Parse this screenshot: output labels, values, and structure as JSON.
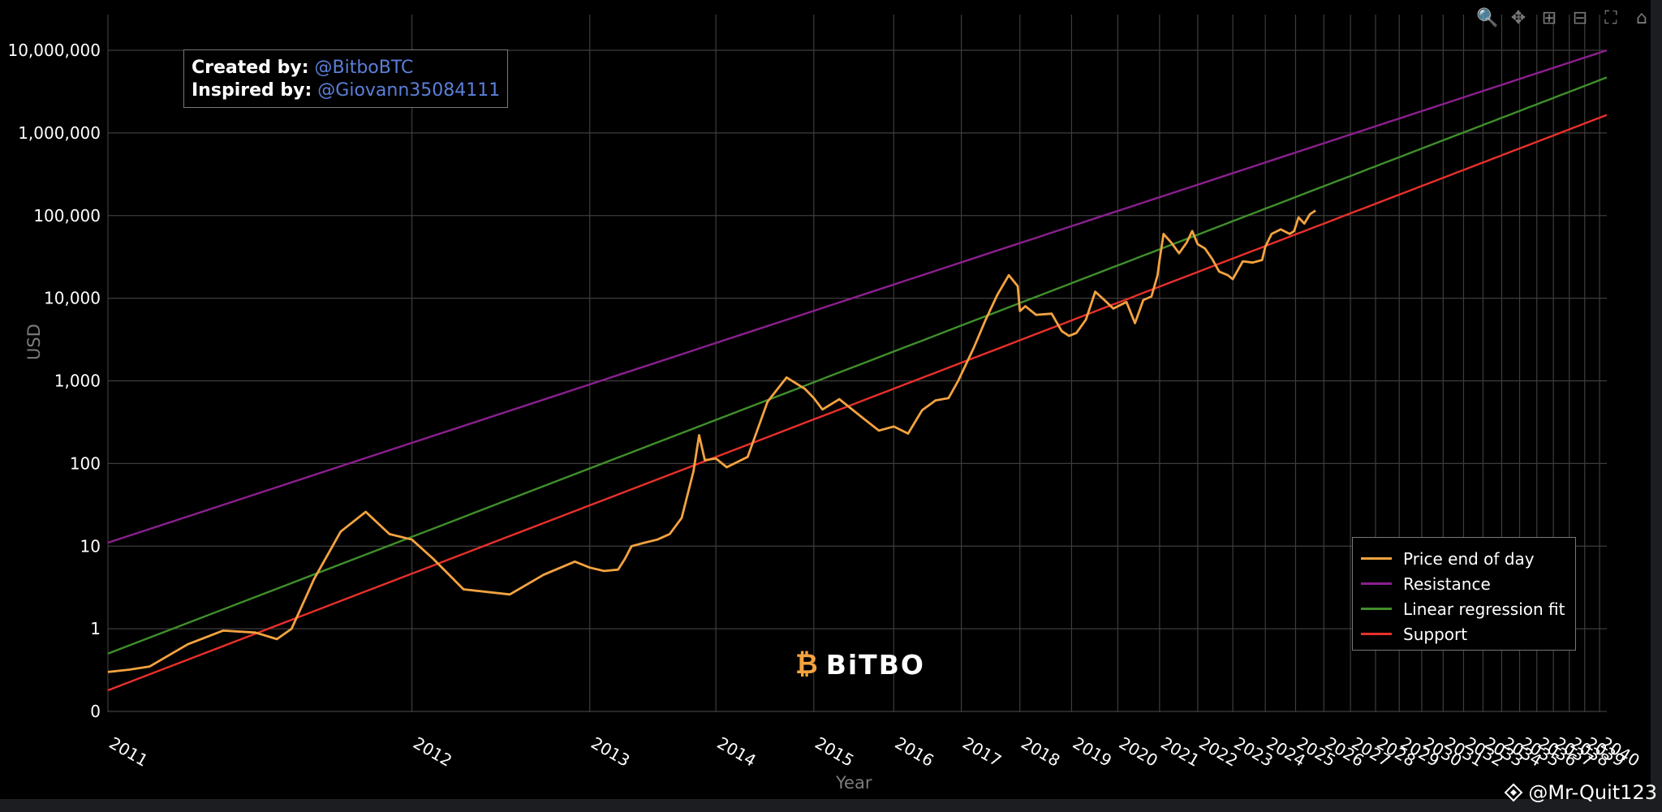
{
  "chart_data": {
    "type": "line",
    "yscale": "log",
    "xlabel": "Year",
    "ylabel": "USD",
    "ylim": [
      0.1,
      20000000
    ],
    "xlim": [
      2011.0,
      2040.5
    ],
    "y_ticks": [
      {
        "value": 0.1,
        "label": "0"
      },
      {
        "value": 1,
        "label": "1"
      },
      {
        "value": 10,
        "label": "10"
      },
      {
        "value": 100,
        "label": "100"
      },
      {
        "value": 1000,
        "label": "1,000"
      },
      {
        "value": 10000,
        "label": "10,000"
      },
      {
        "value": 100000,
        "label": "100,000"
      },
      {
        "value": 1000000,
        "label": "1,000,000"
      },
      {
        "value": 10000000,
        "label": "10,000,000"
      }
    ],
    "x_ticks": [
      "2011",
      "2012",
      "2013",
      "2014",
      "2015",
      "2016",
      "2017",
      "2018",
      "2019",
      "2020",
      "2021",
      "2022",
      "2023",
      "2024",
      "2025",
      "2026",
      "2027",
      "2028",
      "2029",
      "2030",
      "2031",
      "2032",
      "2033",
      "2034",
      "2035",
      "2036",
      "2037",
      "2038",
      "2039",
      "2040"
    ],
    "series": [
      {
        "name": "Price end of day",
        "color": "#f4a340",
        "x": [
          2011.0,
          2011.05,
          2011.1,
          2011.2,
          2011.3,
          2011.4,
          2011.47,
          2011.52,
          2011.6,
          2011.7,
          2011.8,
          2011.9,
          2012.0,
          2012.1,
          2012.25,
          2012.5,
          2012.7,
          2012.9,
          2013.0,
          2013.1,
          2013.2,
          2013.25,
          2013.3,
          2013.4,
          2013.5,
          2013.6,
          2013.7,
          2013.8,
          2013.85,
          2013.9,
          2014.0,
          2014.1,
          2014.3,
          2014.5,
          2014.7,
          2014.9,
          2015.0,
          2015.1,
          2015.3,
          2015.6,
          2015.8,
          2016.0,
          2016.2,
          2016.4,
          2016.6,
          2016.8,
          2016.95,
          2017.2,
          2017.4,
          2017.6,
          2017.8,
          2017.96,
          2018.0,
          2018.1,
          2018.3,
          2018.6,
          2018.8,
          2018.95,
          2019.1,
          2019.3,
          2019.5,
          2019.7,
          2019.9,
          2020.2,
          2020.4,
          2020.6,
          2020.8,
          2020.95,
          2021.0,
          2021.1,
          2021.3,
          2021.5,
          2021.7,
          2021.85,
          2022.0,
          2022.2,
          2022.4,
          2022.6,
          2022.85,
          2023.0,
          2023.3,
          2023.6,
          2023.9,
          2024.0,
          2024.2,
          2024.5,
          2024.8,
          2024.95,
          2025.1,
          2025.3,
          2025.5,
          2025.7
        ],
        "y": [
          0.3,
          0.32,
          0.35,
          0.65,
          0.95,
          0.9,
          0.75,
          1.0,
          4,
          15,
          26,
          14,
          12,
          7,
          3,
          2.6,
          4.5,
          6.5,
          5.5,
          5.0,
          5.2,
          7,
          10,
          11,
          12,
          14,
          22,
          80,
          220,
          110,
          115,
          90,
          120,
          560,
          1100,
          800,
          620,
          450,
          600,
          350,
          250,
          280,
          230,
          440,
          580,
          620,
          1000,
          2500,
          5500,
          11000,
          19000,
          14000,
          7000,
          8000,
          6300,
          6500,
          4000,
          3500,
          3800,
          5500,
          12000,
          9500,
          7500,
          9000,
          5000,
          9500,
          10500,
          19000,
          29000,
          60000,
          47000,
          35000,
          47000,
          65000,
          45000,
          40000,
          30000,
          21000,
          19000,
          17000,
          28000,
          27000,
          29000,
          42000,
          60000,
          68000,
          60000,
          65000,
          95000,
          80000,
          104000,
          115000
        ]
      },
      {
        "name": "Resistance",
        "color": "#8b1f8e",
        "x": [
          2011.0,
          2040.5
        ],
        "y": [
          11,
          10000000
        ]
      },
      {
        "name": "Linear regression fit",
        "color": "#3f8f2b",
        "x": [
          2011.0,
          2040.5
        ],
        "y": [
          0.5,
          4700000
        ]
      },
      {
        "name": "Support",
        "color": "#e8302a",
        "x": [
          2011.0,
          2040.5
        ],
        "y": [
          0.18,
          1650000
        ]
      }
    ]
  },
  "annotation": {
    "created_label": "Created by:",
    "created_handle": "@BitboBTC",
    "inspired_label": "Inspired by:",
    "inspired_handle": "@Giovann35084111"
  },
  "legend_items": [
    {
      "label": "Price end of day",
      "color": "#f4a340"
    },
    {
      "label": "Resistance",
      "color": "#8b1f8e"
    },
    {
      "label": "Linear regression fit",
      "color": "#3f8f2b"
    },
    {
      "label": "Support",
      "color": "#e8302a"
    }
  ],
  "watermark": {
    "brand": "BiTBO",
    "mark": "₿"
  },
  "credit": {
    "handle": "@Mr-Quit123",
    "icon": "binance-square-icon"
  },
  "modebar": [
    {
      "name": "zoom",
      "glyph": "🔍",
      "icon": "zoom-icon"
    },
    {
      "name": "pan",
      "glyph": "✥",
      "icon": "pan-icon"
    },
    {
      "name": "zoom-in",
      "glyph": "⊞",
      "icon": "zoom-in-icon"
    },
    {
      "name": "zoom-out",
      "glyph": "⊟",
      "icon": "zoom-out-icon"
    },
    {
      "name": "autoscale",
      "glyph": "⛶",
      "icon": "autoscale-icon"
    },
    {
      "name": "reset",
      "glyph": "⌂",
      "icon": "home-icon"
    }
  ]
}
